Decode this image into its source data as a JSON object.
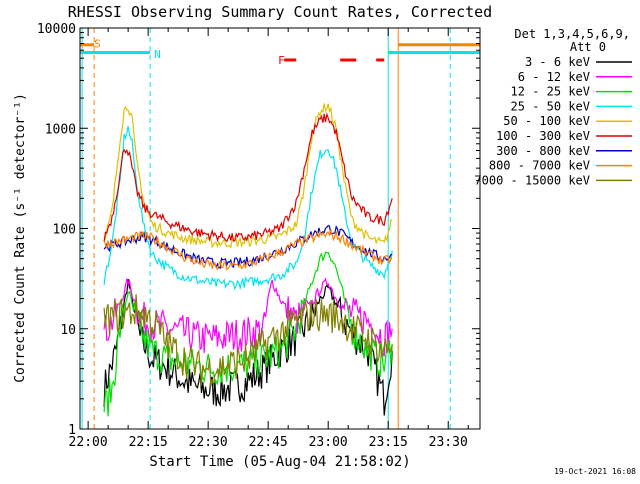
{
  "colors": {
    "axis": "#000000",
    "band_3_6": "#000000",
    "band_6_12": "#ff00ff",
    "band_12_25": "#00e000",
    "band_25_50": "#00e5ee",
    "band_50_100": "#e0c000",
    "band_100_300": "#e00000",
    "band_300_800": "#0000c8",
    "band_800_7000": "#ff8000",
    "band_7000_15000": "#808000",
    "cyan_marker": "#00e5ee",
    "orange_marker": "#ff8000",
    "flare_marker": "#ff0000"
  },
  "chart_data": {
    "type": "line",
    "title": "RHESSI Observing Summary Count Rates, Corrected",
    "xlabel": "Start Time (05-Aug-04 21:58:02)",
    "ylabel": "Corrected Count Rate (s⁻¹ detector⁻¹)",
    "y_scale": "log",
    "ylim": [
      1,
      10000
    ],
    "xlim": [
      "21:58:02",
      "23:38:00"
    ],
    "x_ticks": [
      "22:00",
      "22:15",
      "22:30",
      "22:45",
      "23:00",
      "23:15",
      "23:30"
    ],
    "y_ticks": [
      "1",
      "10",
      "100",
      "1000",
      "10000"
    ],
    "legend": {
      "placement": "right, outside plot",
      "header_line1": "Det 1,3,4,5,6,9,",
      "header_line2": "Att 0"
    },
    "x_unit": "minutes after 22:00",
    "series": [
      {
        "name": "3 - 6 keV",
        "color_key": "band_3_6",
        "x": [
          4,
          7,
          10,
          13,
          16,
          20,
          24,
          28,
          32,
          36,
          40,
          44,
          48,
          52,
          56,
          58,
          60,
          62,
          63,
          64,
          66,
          70,
          74,
          76
        ],
        "y": [
          2.5,
          6,
          30,
          8,
          5,
          4,
          3,
          2.5,
          2.4,
          2.6,
          3,
          4,
          6,
          8,
          13,
          20,
          25,
          18,
          14,
          12,
          9,
          6,
          2,
          6
        ]
      },
      {
        "name": "6 - 12 keV",
        "color_key": "band_6_12",
        "x": [
          4,
          7,
          10,
          13,
          16,
          20,
          24,
          28,
          32,
          36,
          40,
          44,
          45,
          46,
          48,
          50,
          52,
          56,
          58,
          60,
          62,
          64,
          66,
          70,
          74,
          76
        ],
        "y": [
          9,
          14,
          30,
          13,
          11,
          10,
          9,
          8,
          8,
          8.5,
          9,
          10,
          20,
          30,
          20,
          15,
          12,
          18,
          25,
          30,
          20,
          16,
          14,
          12,
          8,
          10
        ]
      },
      {
        "name": "12 - 25 keV",
        "color_key": "band_12_25",
        "x": [
          4,
          6,
          8,
          10,
          12,
          14,
          16,
          20,
          24,
          28,
          32,
          36,
          40,
          44,
          48,
          52,
          56,
          58,
          60,
          62,
          64,
          66,
          70,
          74,
          76
        ],
        "y": [
          1.6,
          2.5,
          10,
          24,
          12,
          8,
          6,
          5,
          4.5,
          4.2,
          4,
          4.2,
          4.5,
          5,
          6,
          10,
          30,
          50,
          60,
          40,
          20,
          10,
          6,
          4.5,
          7
        ]
      },
      {
        "name": "25 - 50 keV",
        "color_key": "band_25_50",
        "x": [
          4,
          6,
          8,
          9,
          10,
          11,
          12,
          14,
          16,
          20,
          24,
          28,
          32,
          36,
          40,
          44,
          48,
          52,
          54,
          56,
          58,
          60,
          62,
          64,
          66,
          70,
          74,
          76
        ],
        "y": [
          30,
          70,
          300,
          800,
          1000,
          700,
          300,
          100,
          55,
          40,
          33,
          30,
          28,
          28,
          29,
          31,
          34,
          45,
          80,
          250,
          550,
          650,
          400,
          150,
          70,
          45,
          35,
          60
        ]
      },
      {
        "name": "50 - 100 keV",
        "color_key": "band_50_100",
        "x": [
          4,
          6,
          8,
          9,
          10,
          11,
          12,
          14,
          16,
          20,
          24,
          28,
          32,
          36,
          40,
          44,
          48,
          52,
          54,
          56,
          58,
          60,
          62,
          64,
          66,
          70,
          74,
          76
        ],
        "y": [
          70,
          150,
          800,
          1500,
          1700,
          1200,
          500,
          180,
          110,
          90,
          80,
          75,
          72,
          72,
          74,
          78,
          84,
          110,
          250,
          900,
          1500,
          1700,
          1000,
          300,
          120,
          80,
          70,
          120
        ]
      },
      {
        "name": "100 - 300 keV",
        "color_key": "band_100_300",
        "x": [
          4,
          6,
          8,
          9,
          10,
          11,
          12,
          14,
          16,
          20,
          24,
          28,
          32,
          36,
          40,
          44,
          48,
          52,
          54,
          56,
          58,
          60,
          62,
          64,
          66,
          70,
          74,
          76
        ],
        "y": [
          80,
          130,
          350,
          650,
          600,
          400,
          250,
          160,
          140,
          115,
          100,
          90,
          85,
          80,
          82,
          88,
          100,
          180,
          400,
          900,
          1200,
          1300,
          900,
          400,
          200,
          130,
          120,
          200
        ]
      },
      {
        "name": "300 - 800 keV",
        "color_key": "band_300_800",
        "x": [
          4,
          8,
          12,
          14,
          16,
          20,
          24,
          28,
          32,
          36,
          40,
          44,
          48,
          52,
          56,
          58,
          60,
          62,
          64,
          66,
          70,
          74,
          76
        ],
        "y": [
          65,
          72,
          80,
          82,
          78,
          65,
          55,
          48,
          45,
          45,
          47,
          52,
          60,
          72,
          88,
          95,
          100,
          95,
          85,
          72,
          58,
          50,
          55
        ]
      },
      {
        "name": "800 - 7000 keV",
        "color_key": "band_800_7000",
        "x": [
          4,
          8,
          12,
          14,
          16,
          20,
          24,
          28,
          32,
          36,
          40,
          44,
          48,
          52,
          56,
          58,
          60,
          62,
          64,
          66,
          70,
          74,
          76
        ],
        "y": [
          70,
          75,
          82,
          84,
          80,
          65,
          52,
          45,
          42,
          42,
          44,
          50,
          58,
          70,
          80,
          85,
          88,
          84,
          78,
          68,
          55,
          47,
          50
        ]
      },
      {
        "name": "7000 - 15000 keV",
        "color_key": "band_7000_15000",
        "x": [
          4,
          8,
          12,
          14,
          16,
          20,
          24,
          28,
          32,
          36,
          40,
          44,
          48,
          52,
          56,
          58,
          60,
          62,
          64,
          66,
          70,
          74,
          76
        ],
        "y": [
          12,
          14,
          15,
          14,
          12,
          7,
          5,
          4,
          4,
          4.5,
          5,
          7,
          9,
          12,
          14,
          14,
          14,
          13,
          12,
          10,
          8,
          6,
          7
        ]
      }
    ],
    "annotations": [
      {
        "label": "S",
        "color_key": "orange_marker",
        "x": 0,
        "y": 7000
      },
      {
        "label": "N",
        "color_key": "cyan_marker",
        "x": 16,
        "y": 5500
      },
      {
        "label": "F",
        "color_key": "flare_marker",
        "x": 46,
        "y": 4800
      }
    ]
  },
  "footer_date": "19-Oct-2021 16:08"
}
